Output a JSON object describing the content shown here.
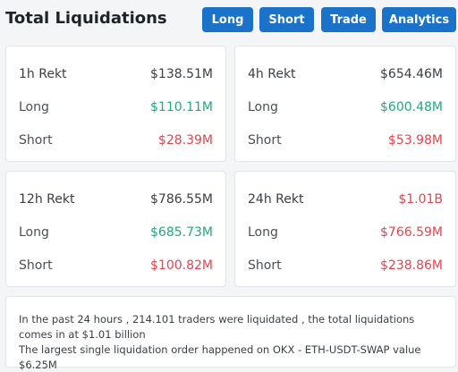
{
  "header": {
    "title": "Total Liquidations",
    "buttons": {
      "long": "Long",
      "short": "Short",
      "trade": "Trade",
      "analytics": "Analytics"
    }
  },
  "colors": {
    "accent": "#1a73c9",
    "positive": "#1faa82",
    "negative": "#e8434f"
  },
  "cards": [
    {
      "period": "1h Rekt",
      "total": "$138.51M",
      "long_label": "Long",
      "long": "$110.11M",
      "short_label": "Short",
      "short": "$28.39M"
    },
    {
      "period": "4h Rekt",
      "total": "$654.46M",
      "long_label": "Long",
      "long": "$600.48M",
      "short_label": "Short",
      "short": "$53.98M"
    },
    {
      "period": "12h Rekt",
      "total": "$786.55M",
      "long_label": "Long",
      "long": "$685.73M",
      "short_label": "Short",
      "short": "$100.82M"
    },
    {
      "period": "24h Rekt",
      "total": "$1.01B",
      "long_label": "Long",
      "long": "$766.59M",
      "short_label": "Short",
      "short": "$238.86M"
    }
  ],
  "summary": {
    "line1": "In the past 24 hours , 214.101 traders were liquidated , the total liquidations comes in at $1.01 billion",
    "line2": "The largest single liquidation order happened on OKX - ETH-USDT-SWAP value $6.25M"
  }
}
